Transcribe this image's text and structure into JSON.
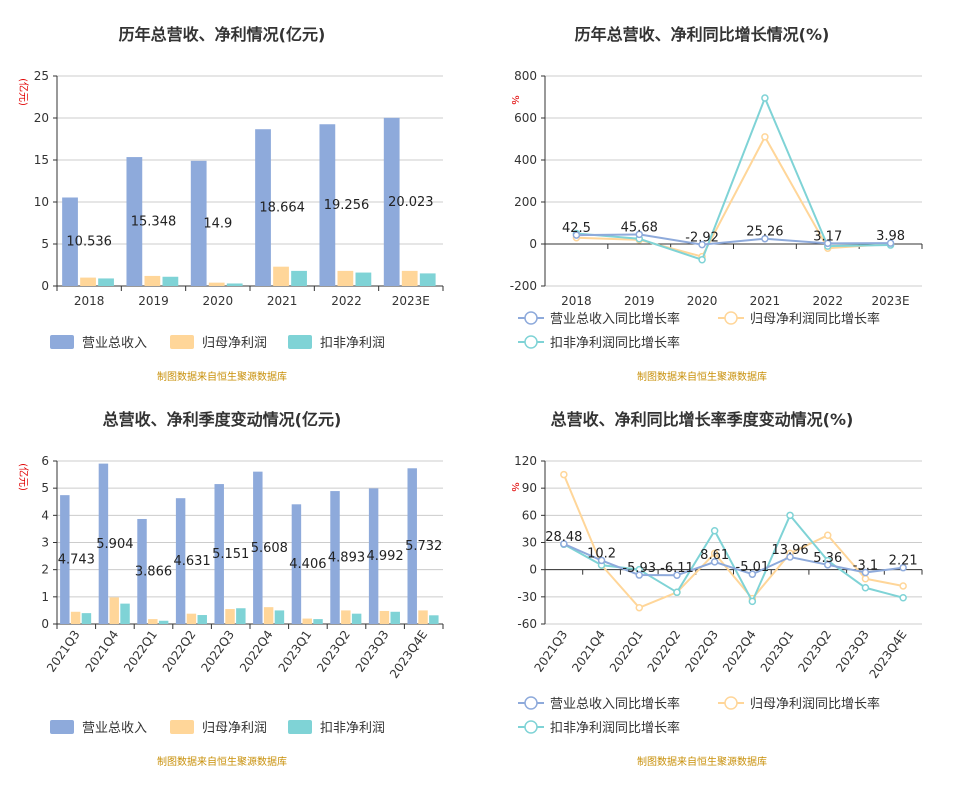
{
  "colors": {
    "revenue": "#8eaadb",
    "net_profit": "#ffd699",
    "deducted_profit": "#7fd3d6",
    "axis": "#333333",
    "grid": "#cccccc",
    "unit_text": "#e00000",
    "source_text": "#c8900a"
  },
  "source_note": "制图数据来自恒生聚源数据库",
  "chart_data": [
    {
      "type": "bar",
      "title": "历年总营收、净利情况(亿元)",
      "ylabel": "(亿元)",
      "ylim": [
        0,
        25
      ],
      "yticks": [
        0,
        5,
        10,
        15,
        20,
        25
      ],
      "grid": true,
      "legend_position": "bottom-left",
      "categories": [
        "2018",
        "2019",
        "2020",
        "2021",
        "2022",
        "2023E"
      ],
      "series": [
        {
          "name": "营业总收入",
          "values": [
            10.536,
            15.348,
            14.9,
            18.664,
            19.256,
            20.023
          ]
        },
        {
          "name": "归母净利润",
          "values": [
            1.0,
            1.2,
            0.4,
            2.3,
            1.8,
            1.8
          ]
        },
        {
          "name": "扣非净利润",
          "values": [
            0.9,
            1.1,
            0.3,
            1.8,
            1.6,
            1.5
          ]
        }
      ],
      "data_labels": [
        "10.536",
        "15.348",
        "14.9",
        "18.664",
        "19.256",
        "20.023"
      ]
    },
    {
      "type": "line",
      "title": "历年总营收、净利同比增长情况(%)",
      "ylabel": "%",
      "ylim": [
        -200,
        800
      ],
      "yticks": [
        -200,
        0,
        200,
        400,
        600,
        800
      ],
      "grid": true,
      "legend_position": "bottom-left",
      "categories": [
        "2018",
        "2019",
        "2020",
        "2021",
        "2022",
        "2023E"
      ],
      "series": [
        {
          "name": "营业总收入同比增长率",
          "values": [
            42.5,
            45.68,
            -2.92,
            25.26,
            3.17,
            3.98
          ]
        },
        {
          "name": "归母净利润同比增长率",
          "values": [
            30,
            20,
            -60,
            510,
            -20,
            0
          ]
        },
        {
          "name": "扣非净利润同比增长率",
          "values": [
            50,
            25,
            -75,
            695,
            -10,
            -5
          ]
        }
      ],
      "data_labels": [
        "42.5",
        "45.68",
        "-2.92",
        "25.26",
        "3.17",
        "3.98"
      ]
    },
    {
      "type": "bar",
      "title": "总营收、净利季度变动情况(亿元)",
      "ylabel": "(亿元)",
      "ylim": [
        0,
        6
      ],
      "yticks": [
        0,
        1,
        2,
        3,
        4,
        5,
        6
      ],
      "grid": true,
      "legend_position": "bottom-left",
      "categories": [
        "2021Q3",
        "2021Q4",
        "2022Q1",
        "2022Q2",
        "2022Q3",
        "2022Q4",
        "2023Q1",
        "2023Q2",
        "2023Q3",
        "2023Q4E"
      ],
      "series": [
        {
          "name": "营业总收入",
          "values": [
            4.743,
            5.904,
            3.866,
            4.631,
            5.151,
            5.608,
            4.406,
            4.893,
            4.992,
            5.732
          ]
        },
        {
          "name": "归母净利润",
          "values": [
            0.45,
            0.98,
            0.18,
            0.38,
            0.55,
            0.62,
            0.2,
            0.5,
            0.48,
            0.5
          ]
        },
        {
          "name": "扣非净利润",
          "values": [
            0.4,
            0.75,
            0.12,
            0.33,
            0.58,
            0.5,
            0.18,
            0.38,
            0.45,
            0.32
          ]
        }
      ],
      "data_labels": [
        "4.743",
        "5.904",
        "3.866",
        "4.631",
        "5.151",
        "5.608",
        "4.406",
        "4.893",
        "4.992",
        "5.732"
      ]
    },
    {
      "type": "line",
      "title": "总营收、净利同比增长率季度变动情况(%)",
      "ylabel": "%",
      "ylim": [
        -60,
        120
      ],
      "yticks": [
        -60,
        -30,
        0,
        30,
        60,
        90,
        120
      ],
      "grid": true,
      "legend_position": "bottom-left",
      "categories": [
        "2021Q3",
        "2021Q4",
        "2022Q1",
        "2022Q2",
        "2022Q3",
        "2022Q4",
        "2023Q1",
        "2023Q2",
        "2023Q3",
        "2023Q4E"
      ],
      "series": [
        {
          "name": "营业总收入同比增长率",
          "values": [
            28.48,
            10.2,
            -5.93,
            -6.11,
            8.61,
            -5.01,
            13.96,
            5.36,
            -3.1,
            2.21
          ]
        },
        {
          "name": "归母净利润同比增长率",
          "values": [
            105,
            5,
            -42,
            -25,
            18,
            -32,
            18,
            38,
            -10,
            -18
          ]
        },
        {
          "name": "扣非净利润同比增长率",
          "values": [
            28,
            5,
            0,
            -25,
            43,
            -35,
            60,
            10,
            -20,
            -31
          ]
        }
      ],
      "data_labels": [
        "28.48",
        "10.2",
        "-5.93",
        "-6.11",
        "8.61",
        "-5.01",
        "13.96",
        "5.36",
        "-3.1",
        "2.21"
      ]
    }
  ]
}
